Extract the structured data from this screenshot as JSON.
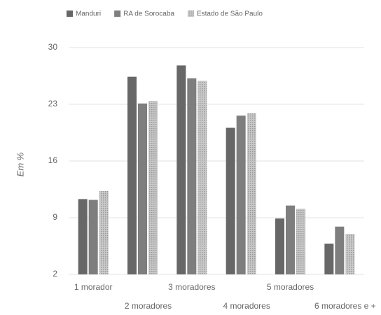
{
  "chart_data": {
    "type": "bar",
    "y_label": "Em %",
    "categories": [
      "1 morador",
      "2 moradores",
      "3 moradores",
      "4 moradores",
      "5 moradores",
      "6 moradores e +"
    ],
    "series": [
      {
        "name": "Manduri",
        "color": "#676767",
        "values": [
          11.3,
          26.4,
          27.8,
          20.1,
          8.9,
          5.8
        ]
      },
      {
        "name": "RA de Sorocaba",
        "color": "#7e7e7e",
        "values": [
          11.2,
          23.1,
          26.2,
          21.6,
          10.5,
          7.9
        ]
      },
      {
        "name": "Estado de São Paulo",
        "color": "#b4b4b4",
        "values": [
          12.3,
          23.4,
          25.9,
          21.9,
          10.1,
          7.0
        ]
      }
    ],
    "ylim": [
      2,
      30
    ],
    "yticks": [
      2,
      9,
      16,
      23,
      30
    ],
    "grid": true
  }
}
